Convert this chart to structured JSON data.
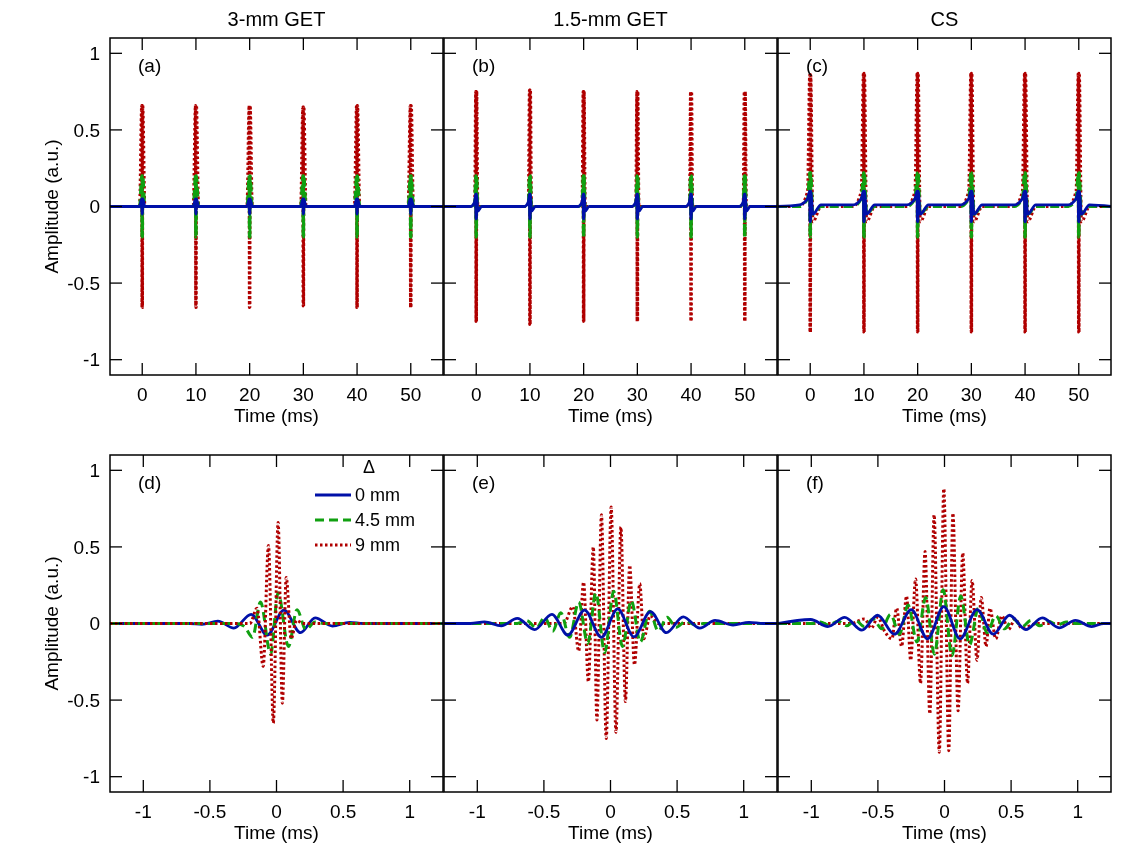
{
  "chart_data": [
    {
      "type": "line",
      "title": "3-mm GET",
      "xlabel": "Time (ms)",
      "ylabel": "Amplitude (a.u.)",
      "annotations": [
        "(a)"
      ],
      "xlim": [
        -6,
        56
      ],
      "ylim": [
        -1.1,
        1.1
      ],
      "xticks": [
        0,
        10,
        20,
        30,
        40,
        50
      ],
      "yticks": [
        -1,
        -0.5,
        0,
        0.5,
        1
      ],
      "legend": false,
      "x": [
        -6,
        -0.5,
        -0.1,
        -0.05,
        0,
        0.05,
        0.1,
        0.5,
        9.5,
        9.9,
        9.95,
        10,
        10.05,
        10.1,
        10.5,
        19.5,
        19.9,
        19.95,
        20,
        20.05,
        20.1,
        20.5,
        29.5,
        29.9,
        29.95,
        30,
        30.05,
        30.1,
        30.5,
        39.5,
        39.9,
        39.95,
        40,
        40.05,
        40.1,
        40.5,
        49.5,
        49.9,
        49.95,
        50,
        50.05,
        50.1,
        50.5,
        56
      ],
      "series": [
        {
          "color": "#b00000",
          "line_style": "dotted",
          "values": [
            0,
            0,
            0.66,
            -0.66,
            0.66,
            -0.66,
            0.66,
            0,
            0,
            0.66,
            -0.66,
            0.66,
            -0.66,
            0.66,
            0,
            0,
            0.66,
            -0.66,
            0.66,
            -0.66,
            0.66,
            0,
            0,
            0.65,
            -0.65,
            0.65,
            -0.65,
            0.65,
            0,
            0,
            0.66,
            -0.66,
            0.66,
            -0.66,
            0.66,
            0,
            0,
            0.66,
            -0.66,
            0.66,
            -0.66,
            0.66,
            0,
            0
          ]
        },
        {
          "color": "#10a010",
          "line_style": "dashed",
          "values": [
            0,
            0,
            0.2,
            -0.2,
            0.2,
            -0.2,
            0.2,
            0,
            0,
            0.2,
            -0.2,
            0.2,
            -0.2,
            0.2,
            0,
            0,
            0.2,
            -0.2,
            0.2,
            -0.2,
            0.2,
            0,
            0,
            0.2,
            -0.2,
            0.2,
            -0.2,
            0.2,
            0,
            0,
            0.2,
            -0.2,
            0.2,
            -0.2,
            0.2,
            0,
            0,
            0.2,
            -0.2,
            0.2,
            -0.2,
            0.2,
            0,
            0
          ]
        },
        {
          "color": "#0010a8",
          "line_style": "solid",
          "values": [
            0,
            0,
            0.05,
            -0.05,
            0.05,
            -0.05,
            0.05,
            0,
            0,
            0.05,
            -0.05,
            0.05,
            -0.05,
            0.05,
            0,
            0,
            0.05,
            -0.05,
            0.05,
            -0.05,
            0.05,
            0,
            0,
            0.05,
            -0.05,
            0.05,
            -0.05,
            0.05,
            0,
            0,
            0.05,
            -0.05,
            0.05,
            -0.05,
            0.05,
            0,
            0,
            0.05,
            -0.05,
            0.05,
            -0.05,
            0.05,
            0,
            0
          ]
        }
      ]
    },
    {
      "type": "line",
      "title": "1.5-mm GET",
      "xlabel": "Time (ms)",
      "annotations": [
        "(b)"
      ],
      "xlim": [
        -6,
        56
      ],
      "ylim": [
        -1.1,
        1.1
      ],
      "xticks": [
        0,
        10,
        20,
        30,
        40,
        50
      ],
      "yticks": [
        -1,
        -0.5,
        0,
        0.5,
        1
      ],
      "tick_labels": "x",
      "legend": false,
      "x": [
        -6,
        -1,
        -0.3,
        -0.1,
        -0.05,
        0,
        0.05,
        0.1,
        0.3,
        1,
        9,
        9.7,
        9.9,
        9.95,
        10,
        10.05,
        10.1,
        10.3,
        11,
        19,
        19.7,
        19.9,
        19.95,
        20,
        20.05,
        20.1,
        20.3,
        21,
        29,
        29.7,
        29.9,
        29.95,
        30,
        30.05,
        30.1,
        30.3,
        31,
        39,
        39.7,
        39.9,
        39.95,
        40,
        40.05,
        40.1,
        40.3,
        41,
        49,
        49.7,
        49.9,
        49.95,
        50,
        50.05,
        50.1,
        50.3,
        51,
        56
      ],
      "series": [
        {
          "color": "#b00000",
          "line_style": "dotted",
          "values": [
            0,
            0,
            0,
            0.75,
            -0.75,
            0.75,
            -0.75,
            0.75,
            0,
            0,
            0,
            0,
            0.76,
            -0.77,
            0.76,
            -0.77,
            0.76,
            0,
            0,
            0,
            0,
            0.75,
            -0.75,
            0.75,
            -0.75,
            0.75,
            0,
            0,
            0,
            0,
            0.75,
            -0.75,
            0.75,
            -0.75,
            0.75,
            0,
            0,
            0,
            0,
            0.75,
            -0.75,
            0.75,
            -0.75,
            0.75,
            0,
            0,
            0,
            0,
            0.75,
            -0.75,
            0.75,
            -0.75,
            0.75,
            0,
            0,
            0
          ]
        },
        {
          "color": "#10a010",
          "line_style": "dashed",
          "values": [
            0,
            0,
            0.02,
            0.2,
            -0.2,
            0.2,
            -0.2,
            0.2,
            -0.02,
            0,
            0,
            0.02,
            0.2,
            -0.2,
            0.2,
            -0.2,
            0.2,
            -0.02,
            0,
            0,
            0.02,
            0.2,
            -0.2,
            0.2,
            -0.2,
            0.2,
            -0.02,
            0,
            0,
            0.02,
            0.2,
            -0.2,
            0.2,
            -0.2,
            0.2,
            -0.02,
            0,
            0,
            0.02,
            0.2,
            -0.2,
            0.2,
            -0.2,
            0.2,
            -0.02,
            0,
            0,
            0.02,
            0.2,
            -0.2,
            0.2,
            -0.2,
            0.2,
            -0.02,
            0,
            0
          ]
        },
        {
          "color": "#0010a8",
          "line_style": "solid",
          "values": [
            0,
            0,
            0.03,
            0.08,
            -0.08,
            0.08,
            -0.08,
            0.08,
            -0.03,
            0,
            0,
            0.03,
            0.08,
            -0.08,
            0.08,
            -0.08,
            0.08,
            -0.03,
            0,
            0,
            0.03,
            0.08,
            -0.08,
            0.08,
            -0.08,
            0.08,
            -0.03,
            0,
            0,
            0.03,
            0.08,
            -0.08,
            0.08,
            -0.08,
            0.08,
            -0.03,
            0,
            0,
            0.03,
            0.08,
            -0.08,
            0.08,
            -0.08,
            0.08,
            -0.03,
            0,
            0,
            0.03,
            0.08,
            -0.08,
            0.08,
            -0.08,
            0.08,
            -0.03,
            0,
            0
          ]
        }
      ]
    },
    {
      "type": "line",
      "title": "CS",
      "xlabel": "Time (ms)",
      "annotations": [
        "(c)"
      ],
      "xlim": [
        -6,
        56
      ],
      "ylim": [
        -1.1,
        1.1
      ],
      "xticks": [
        0,
        10,
        20,
        30,
        40,
        50
      ],
      "yticks": [
        -1,
        -0.5,
        0,
        0.5,
        1
      ],
      "tick_labels": "x",
      "legend": false,
      "x": [
        -6,
        -2,
        -0.5,
        -0.1,
        -0.05,
        0,
        0.05,
        0.1,
        0.5,
        2,
        8,
        9.5,
        9.9,
        9.95,
        10,
        10.05,
        10.1,
        10.5,
        12,
        18,
        19.5,
        19.9,
        19.95,
        20,
        20.05,
        20.1,
        20.5,
        22,
        28,
        29.5,
        29.9,
        29.95,
        30,
        30.05,
        30.1,
        30.5,
        32,
        38,
        39.5,
        39.9,
        39.95,
        40,
        40.05,
        40.1,
        40.5,
        42,
        48,
        49.5,
        49.9,
        49.95,
        50,
        50.05,
        50.1,
        50.5,
        52,
        56
      ],
      "series": [
        {
          "color": "#b00000",
          "line_style": "dotted",
          "values": [
            0,
            0,
            0.1,
            0.86,
            -0.82,
            0.86,
            -0.82,
            0.86,
            -0.1,
            0,
            0,
            0.1,
            0.87,
            -0.82,
            0.87,
            -0.82,
            0.87,
            -0.1,
            0,
            0,
            0.1,
            0.87,
            -0.82,
            0.87,
            -0.82,
            0.87,
            -0.1,
            0,
            0,
            0.1,
            0.87,
            -0.82,
            0.87,
            -0.82,
            0.87,
            -0.1,
            0,
            0,
            0.1,
            0.87,
            -0.82,
            0.87,
            -0.82,
            0.87,
            -0.1,
            0,
            0,
            0.1,
            0.87,
            -0.82,
            0.87,
            -0.82,
            0.87,
            -0.1,
            0,
            0
          ]
        },
        {
          "color": "#10a010",
          "line_style": "dashed",
          "values": [
            0,
            0,
            0.05,
            0.22,
            -0.2,
            0.22,
            -0.2,
            0.22,
            -0.05,
            0,
            0,
            0.05,
            0.22,
            -0.2,
            0.22,
            -0.2,
            0.22,
            -0.05,
            0,
            0,
            0.05,
            0.22,
            -0.2,
            0.22,
            -0.2,
            0.22,
            -0.05,
            0,
            0,
            0.05,
            0.22,
            -0.2,
            0.22,
            -0.2,
            0.22,
            -0.05,
            0,
            0,
            0.05,
            0.22,
            -0.2,
            0.22,
            -0.2,
            0.22,
            -0.05,
            0,
            0,
            0.05,
            0.22,
            -0.2,
            0.22,
            -0.2,
            0.22,
            -0.05,
            0,
            0
          ]
        },
        {
          "color": "#0010a8",
          "line_style": "solid",
          "values": [
            0,
            0.01,
            0.05,
            0.1,
            -0.1,
            0.1,
            -0.1,
            0.1,
            -0.05,
            0.01,
            0.01,
            0.05,
            0.1,
            -0.1,
            0.1,
            -0.1,
            0.1,
            -0.05,
            0.01,
            0.01,
            0.05,
            0.1,
            -0.1,
            0.1,
            -0.1,
            0.1,
            -0.05,
            0.01,
            0.01,
            0.05,
            0.1,
            -0.1,
            0.1,
            -0.1,
            0.1,
            -0.05,
            0.01,
            0.01,
            0.05,
            0.1,
            -0.1,
            0.1,
            -0.1,
            0.1,
            -0.05,
            0.01,
            0.01,
            0.05,
            0.1,
            -0.1,
            0.1,
            -0.1,
            0.1,
            -0.05,
            0.01,
            0
          ]
        }
      ]
    },
    {
      "type": "line",
      "xlabel": "Time (ms)",
      "ylabel": "Amplitude (a.u.)",
      "annotations": [
        "(d)"
      ],
      "xlim": [
        -1.25,
        1.25
      ],
      "ylim": [
        -1.1,
        1.1
      ],
      "xticks": [
        -1,
        -0.5,
        0,
        0.5,
        1
      ],
      "yticks": [
        -1,
        -0.5,
        0,
        0.5,
        1
      ],
      "legend": "top right",
      "legend_title": "Δ",
      "series": [
        {
          "name": "0 mm",
          "color": "#0010a8",
          "line_style": "solid",
          "x": [
            -1.25,
            -0.65,
            -0.56,
            -0.44,
            -0.32,
            -0.19,
            -0.07,
            0.056,
            0.18,
            0.29,
            0.42,
            0.55,
            0.65,
            1.25
          ],
          "values": [
            0,
            0,
            -0.005,
            0.015,
            -0.03,
            0.06,
            -0.076,
            0.087,
            -0.06,
            0.037,
            -0.017,
            0.007,
            0,
            0
          ]
        },
        {
          "name": "4.5 mm",
          "color": "#10a010",
          "line_style": "dashed",
          "x": [
            -1.25,
            -0.3,
            -0.24,
            -0.18,
            -0.12,
            -0.044,
            0.012,
            0.09,
            0.154,
            0.22,
            0.29,
            0.35,
            1.25
          ],
          "values": [
            0,
            0,
            -0.02,
            -0.09,
            0.14,
            -0.2,
            0.2,
            -0.15,
            0.09,
            -0.04,
            0.01,
            0,
            0
          ]
        },
        {
          "name": "9 mm",
          "color": "#b00000",
          "line_style": "dotted",
          "x": [
            -1.25,
            -0.2,
            -0.146,
            -0.1,
            -0.06,
            -0.024,
            0.012,
            0.044,
            0.073,
            0.11,
            0.15,
            0.2,
            1.25
          ],
          "values": [
            0,
            0,
            0.1,
            -0.28,
            0.51,
            -0.65,
            0.66,
            -0.52,
            0.3,
            -0.1,
            0.02,
            0,
            0
          ]
        }
      ]
    },
    {
      "type": "line",
      "xlabel": "Time (ms)",
      "annotations": [
        "(e)"
      ],
      "xlim": [
        -1.25,
        1.25
      ],
      "ylim": [
        -1.1,
        1.1
      ],
      "xticks": [
        -1,
        -0.5,
        0,
        0.5,
        1
      ],
      "yticks": [
        -1,
        -0.5,
        0,
        0.5,
        1
      ],
      "tick_labels": "x",
      "legend": false,
      "series": [
        {
          "color": "#b00000",
          "line_style": "dotted",
          "x": [
            -1.25,
            -0.35,
            -0.283,
            -0.239,
            -0.202,
            -0.166,
            -0.129,
            -0.102,
            -0.068,
            -0.032,
            0.005,
            0.041,
            0.078,
            0.112,
            0.144,
            0.18,
            0.22,
            0.249,
            0.298,
            0.36,
            1.25
          ],
          "values": [
            0,
            0,
            0.11,
            -0.18,
            0.27,
            -0.38,
            0.5,
            -0.63,
            0.71,
            -0.75,
            0.76,
            -0.71,
            0.63,
            -0.51,
            0.38,
            -0.27,
            0.26,
            -0.1,
            0.05,
            0,
            0
          ]
        },
        {
          "color": "#10a010",
          "line_style": "dashed",
          "x": [
            -1.25,
            -0.7,
            -0.63,
            -0.556,
            -0.495,
            -0.434,
            -0.373,
            -0.307,
            -0.239,
            -0.171,
            -0.11,
            -0.044,
            0.024,
            0.09,
            0.156,
            0.224,
            0.293,
            0.359,
            0.424,
            0.493,
            0.566,
            0.639,
            0.7,
            1.25
          ],
          "values": [
            0,
            0,
            0.02,
            -0.03,
            0.04,
            -0.05,
            0.07,
            -0.09,
            0.14,
            -0.13,
            0.2,
            -0.19,
            0.21,
            -0.15,
            0.15,
            -0.12,
            0.08,
            -0.05,
            0.04,
            -0.025,
            0.015,
            -0.01,
            0,
            0
          ]
        },
        {
          "color": "#0010a8",
          "line_style": "solid",
          "x": [
            -1.25,
            -1.05,
            -0.946,
            -0.82,
            -0.7,
            -0.57,
            -0.44,
            -0.32,
            -0.195,
            -0.068,
            0.054,
            0.176,
            0.3,
            0.42,
            0.546,
            0.67,
            0.785,
            0.92,
            1.04,
            1.15,
            1.25
          ],
          "values": [
            0,
            0,
            0.01,
            -0.015,
            0.033,
            -0.04,
            0.06,
            -0.076,
            0.087,
            -0.09,
            0.095,
            -0.087,
            0.078,
            -0.06,
            0.043,
            -0.03,
            0.02,
            -0.01,
            0.008,
            0,
            0
          ]
        }
      ]
    },
    {
      "type": "line",
      "xlabel": "Time (ms)",
      "annotations": [
        "(f)"
      ],
      "xlim": [
        -1.25,
        1.25
      ],
      "ylim": [
        -1.1,
        1.1
      ],
      "xticks": [
        -1,
        -0.5,
        0,
        0.5,
        1
      ],
      "yticks": [
        -1,
        -0.5,
        0,
        0.5,
        1
      ],
      "tick_labels": "x",
      "legend": false,
      "series": [
        {
          "color": "#b00000",
          "line_style": "dotted",
          "x": [
            -1.25,
            -0.7,
            -0.6,
            -0.55,
            -0.5,
            -0.45,
            -0.395,
            -0.359,
            -0.322,
            -0.285,
            -0.254,
            -0.217,
            -0.18,
            -0.146,
            -0.11,
            -0.078,
            -0.039,
            -0.005,
            0.032,
            0.063,
            0.102,
            0.137,
            0.173,
            0.207,
            0.244,
            0.276,
            0.312,
            0.341,
            0.385,
            0.43,
            0.48,
            0.53,
            0.58,
            0.7,
            1.25
          ],
          "values": [
            0,
            0,
            0.03,
            -0.03,
            0.04,
            -0.05,
            -0.1,
            0.1,
            -0.15,
            0.18,
            -0.24,
            0.29,
            -0.39,
            0.47,
            -0.59,
            0.71,
            -0.84,
            0.88,
            -0.83,
            0.72,
            -0.57,
            0.46,
            -0.39,
            0.28,
            -0.24,
            0.17,
            -0.15,
            0.1,
            -0.1,
            0.05,
            -0.04,
            0.03,
            -0.03,
            0,
            0
          ]
        },
        {
          "color": "#10a010",
          "line_style": "dashed",
          "x": [
            -1.25,
            -1.0,
            -0.932,
            -0.866,
            -0.8,
            -0.734,
            -0.668,
            -0.602,
            -0.537,
            -0.471,
            -0.405,
            -0.339,
            -0.273,
            -0.207,
            -0.141,
            -0.076,
            -0.01,
            0.056,
            0.122,
            0.188,
            0.254,
            0.32,
            0.385,
            0.451,
            0.517,
            0.583,
            0.649,
            0.715,
            0.78,
            0.846,
            0.912,
            1.0,
            1.25
          ],
          "values": [
            0,
            0,
            0.01,
            -0.01,
            0.015,
            -0.015,
            0.02,
            -0.02,
            0.03,
            -0.035,
            0.06,
            -0.07,
            0.12,
            -0.12,
            0.17,
            -0.2,
            0.22,
            -0.21,
            0.18,
            -0.14,
            0.1,
            -0.06,
            0.05,
            -0.035,
            0.03,
            -0.02,
            0.02,
            -0.015,
            0.015,
            -0.01,
            0.01,
            0,
            0
          ]
        },
        {
          "color": "#0010a8",
          "line_style": "solid",
          "x": [
            -1.244,
            -1.005,
            -0.876,
            -0.749,
            -0.62,
            -0.502,
            -0.376,
            -0.249,
            -0.127,
            -0.005,
            0.117,
            0.244,
            0.366,
            0.488,
            0.61,
            0.734,
            0.861,
            0.983,
            1.105,
            1.195,
            1.25
          ],
          "values": [
            0,
            0.026,
            -0.02,
            0.04,
            -0.043,
            0.054,
            -0.07,
            0.09,
            -0.1,
            0.11,
            -0.1,
            0.09,
            -0.07,
            0.054,
            -0.04,
            0.037,
            -0.028,
            0.02,
            -0.02,
            0,
            0
          ]
        }
      ]
    }
  ]
}
